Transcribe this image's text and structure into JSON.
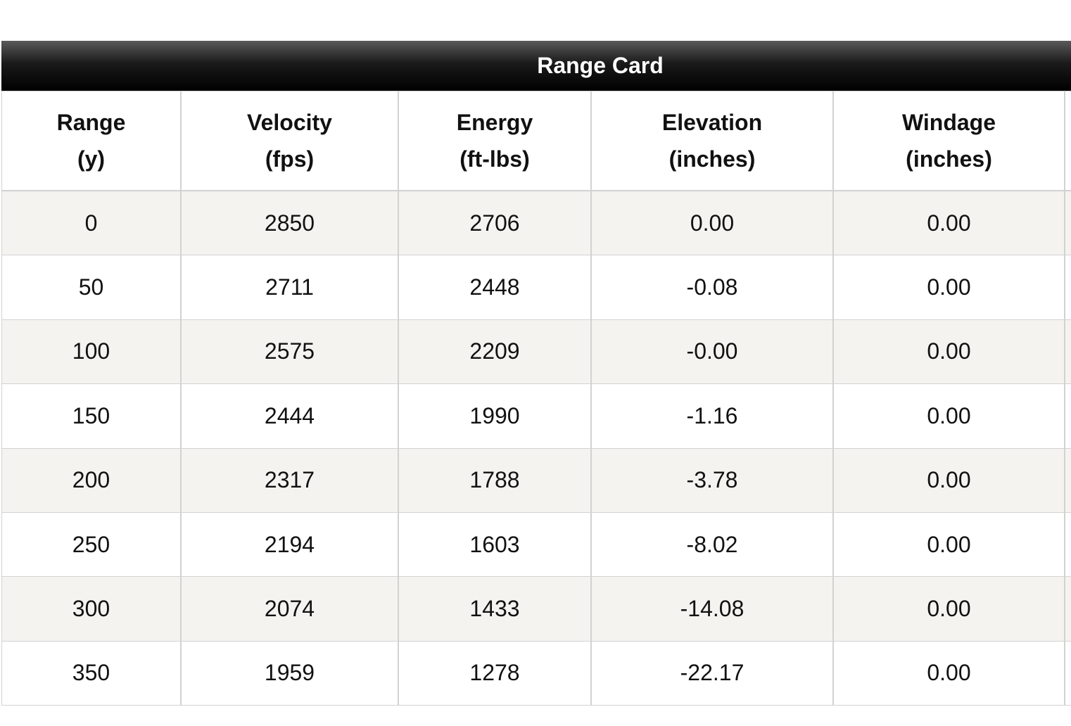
{
  "header": {
    "title": "Range Card"
  },
  "table": {
    "columns": [
      [
        "Range",
        "(y)"
      ],
      [
        "Velocity",
        "(fps)"
      ],
      [
        "Energy",
        "(ft-lbs)"
      ],
      [
        "Elevation",
        "(inches)"
      ],
      [
        "Windage",
        "(inches)"
      ]
    ],
    "rows": [
      [
        "0",
        "2850",
        "2706",
        "0.00",
        "0.00"
      ],
      [
        "50",
        "2711",
        "2448",
        "-0.08",
        "0.00"
      ],
      [
        "100",
        "2575",
        "2209",
        "-0.00",
        "0.00"
      ],
      [
        "150",
        "2444",
        "1990",
        "-1.16",
        "0.00"
      ],
      [
        "200",
        "2317",
        "1788",
        "-3.78",
        "0.00"
      ],
      [
        "250",
        "2194",
        "1603",
        "-8.02",
        "0.00"
      ],
      [
        "300",
        "2074",
        "1433",
        "-14.08",
        "0.00"
      ],
      [
        "350",
        "1959",
        "1278",
        "-22.17",
        "0.00"
      ]
    ]
  }
}
